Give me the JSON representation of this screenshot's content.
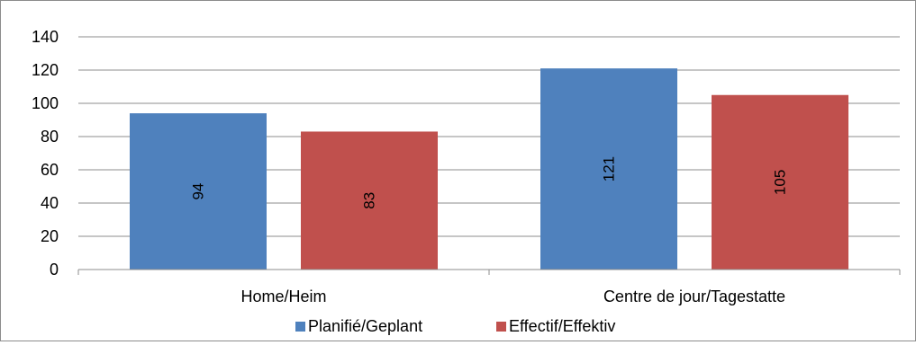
{
  "chart_data": {
    "type": "bar",
    "categories": [
      "Home/Heim",
      "Centre de jour/Tagestatte"
    ],
    "series": [
      {
        "name": "Planifié/Geplant",
        "values": [
          94,
          121
        ],
        "color": "#4f81bd"
      },
      {
        "name": "Effectif/Effektiv",
        "values": [
          83,
          105
        ],
        "color": "#c0504d"
      }
    ],
    "ylim": [
      0,
      140
    ],
    "yticks": [
      0,
      20,
      40,
      60,
      80,
      100,
      120,
      140
    ],
    "grid": true,
    "legend_position": "bottom",
    "data_labels": "rotated-inside"
  }
}
